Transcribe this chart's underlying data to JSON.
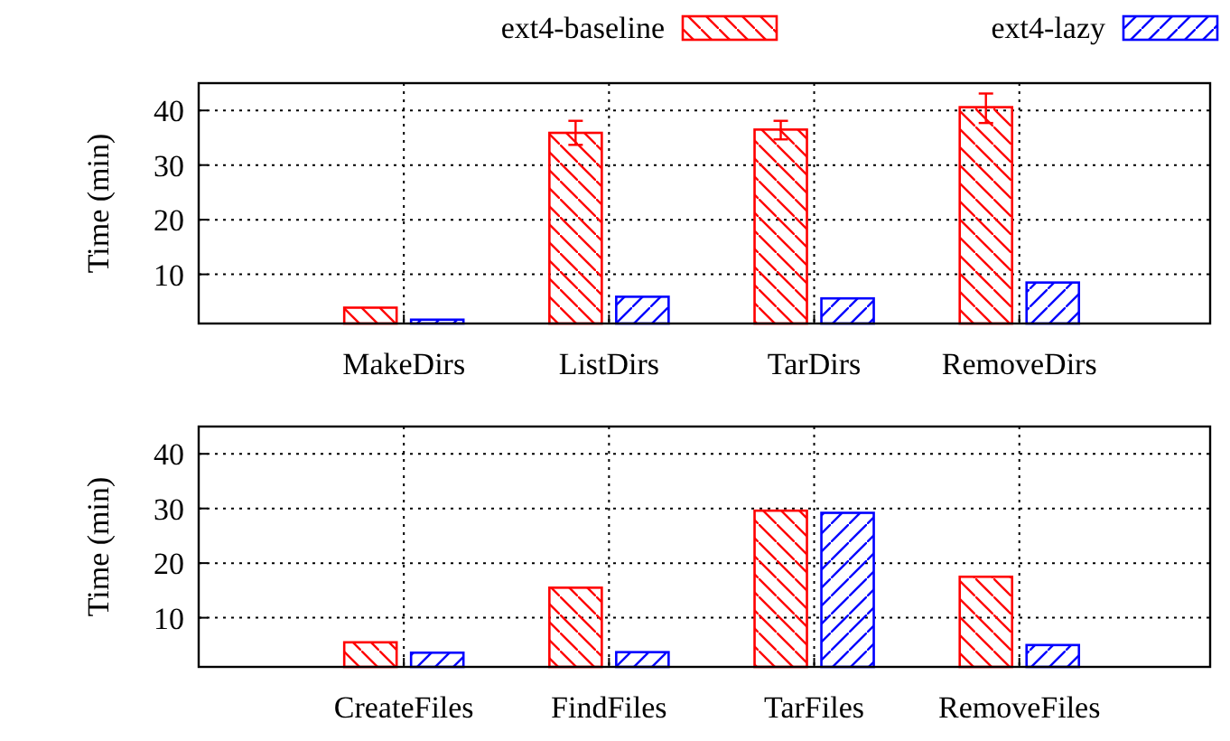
{
  "chart_data": [
    {
      "type": "bar",
      "ylabel": "Time (min)",
      "categories": [
        "MakeDirs",
        "ListDirs",
        "TarDirs",
        "RemoveDirs"
      ],
      "series": [
        {
          "name": "ext4-baseline",
          "color": "#ff0000",
          "values": [
            3.9,
            35.9,
            36.5,
            40.6
          ],
          "errors": [
            null,
            [
              33.7,
              38.1
            ],
            [
              34.7,
              38.1
            ],
            [
              37.7,
              43.1
            ]
          ]
        },
        {
          "name": "ext4-lazy",
          "color": "#0000ff",
          "values": [
            1.7,
            5.9,
            5.6,
            8.5
          ]
        }
      ],
      "ylim": [
        1,
        45
      ],
      "yticks": [
        10,
        20,
        30,
        40
      ],
      "grid": true,
      "legend": "top"
    },
    {
      "type": "bar",
      "ylabel": "Time (min)",
      "categories": [
        "CreateFiles",
        "FindFiles",
        "TarFiles",
        "RemoveFiles"
      ],
      "series": [
        {
          "color": "#ff0000",
          "values": [
            5.5,
            15.5,
            29.6,
            17.5
          ]
        },
        {
          "color": "#0000ff",
          "values": [
            3.6,
            3.7,
            29.2,
            5.0
          ]
        }
      ],
      "ylim": [
        1,
        45
      ],
      "yticks": [
        10,
        20,
        30,
        40
      ],
      "grid": true
    }
  ]
}
